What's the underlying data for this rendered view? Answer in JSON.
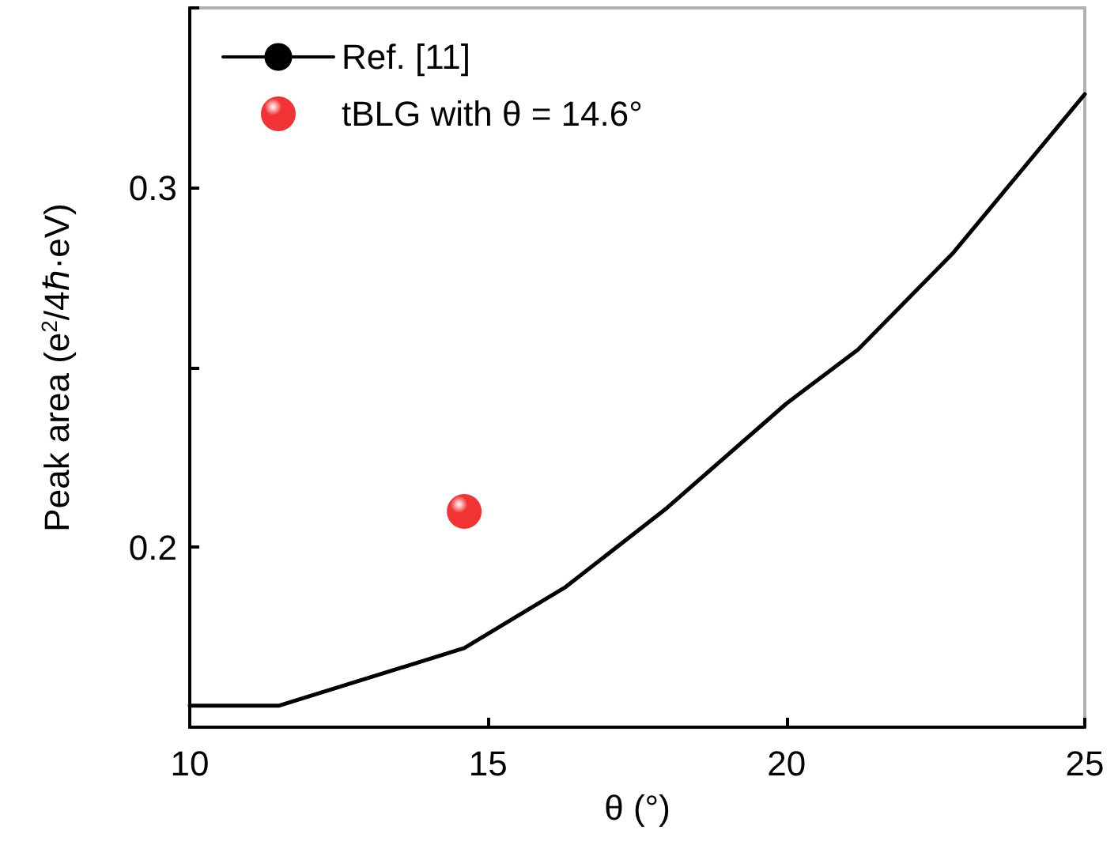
{
  "chart_data": {
    "type": "line",
    "xlabel": "θ (°)",
    "ylabel": "Peak area (e$^{2}$/4ℏ·eV)",
    "xlim": [
      10,
      25
    ],
    "xticks": [
      10,
      15,
      20,
      25
    ],
    "ylim": [
      0.15,
      0.35
    ],
    "yticks": [
      {
        "value": 0.15,
        "label": null
      },
      0.2,
      {
        "value": 0.25,
        "label": null
      },
      0.3,
      {
        "value": 0.35,
        "label": null
      }
    ],
    "legend": "top left",
    "grid": false,
    "marker": "none",
    "line_style": "solid",
    "series": [
      {
        "name": "Ref. [11]",
        "color": "#000000",
        "x": [
          10,
          11.5,
          14.6,
          16.3,
          18,
          20,
          21.2,
          22.8,
          25
        ],
        "values": [
          0.156,
          0.156,
          0.172,
          0.189,
          0.211,
          0.24,
          0.255,
          0.282,
          0.326
        ]
      },
      {
        "name": "tBLG with θ = 14.6°",
        "type": "scatter",
        "marker": "circle",
        "color": "#ee0000",
        "x": [
          14.6
        ],
        "values": [
          0.21
        ]
      }
    ]
  }
}
